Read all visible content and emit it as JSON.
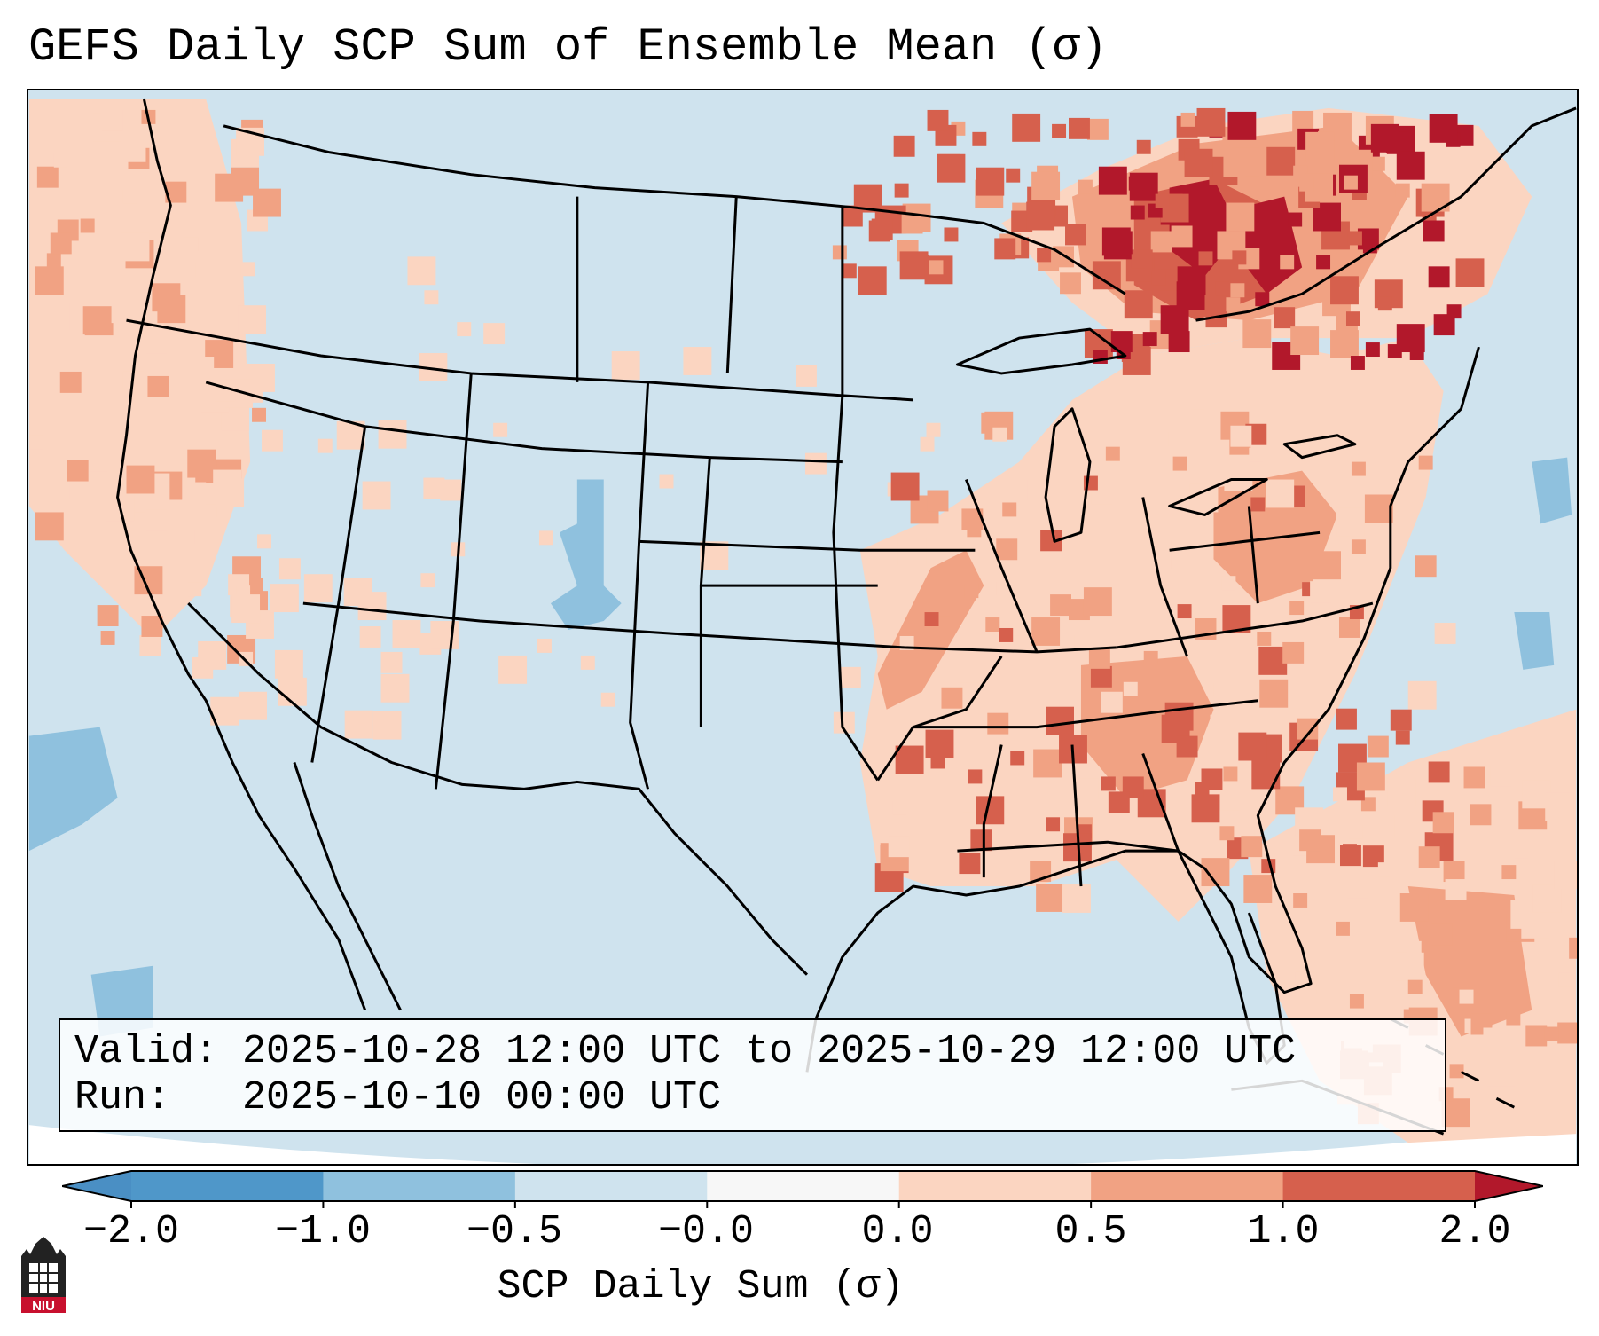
{
  "title": "GEFS Daily SCP Sum of Ensemble Mean (σ)",
  "info": {
    "valid_line": "Valid: 2025-10-28 12:00 UTC to 2025-10-29 12:00 UTC",
    "run_line": "Run:   2025-10-10 00:00 UTC"
  },
  "colorbar": {
    "label": "SCP Daily Sum (σ)",
    "ticks": [
      "−2.0",
      "−1.0",
      "−0.5",
      "−0.0",
      "0.0",
      "0.5",
      "1.0",
      "2.0"
    ],
    "bins": [
      {
        "color": "#4a8fc4",
        "range": "< -2.0"
      },
      {
        "color": "#4f97c9",
        "range": "-2.0 to -1.0"
      },
      {
        "color": "#8fc1de",
        "range": "-1.0 to -0.5"
      },
      {
        "color": "#cfe3ee",
        "range": "-0.5 to -0.0"
      },
      {
        "color": "#f7f7f7",
        "range": "-0.0 to 0.0"
      },
      {
        "color": "#fbd5c1",
        "range": "0.0 to 0.5"
      },
      {
        "color": "#f1a283",
        "range": "0.5 to 1.0"
      },
      {
        "color": "#d6604d",
        "range": "1.0 to 2.0"
      },
      {
        "color": "#b2182b",
        "range": "> 2.0"
      }
    ]
  },
  "colors": {
    "neg_weak": "#cfe3ee",
    "neg_mid": "#8fc1de",
    "pos_weak": "#fbd5c1",
    "pos_mid": "#f1a283",
    "pos_strong": "#d6604d",
    "pos_max": "#b2182b",
    "outside_domain": "#ffffff"
  },
  "logo": {
    "text": "NIU",
    "icon": "niu-logo-icon"
  }
}
